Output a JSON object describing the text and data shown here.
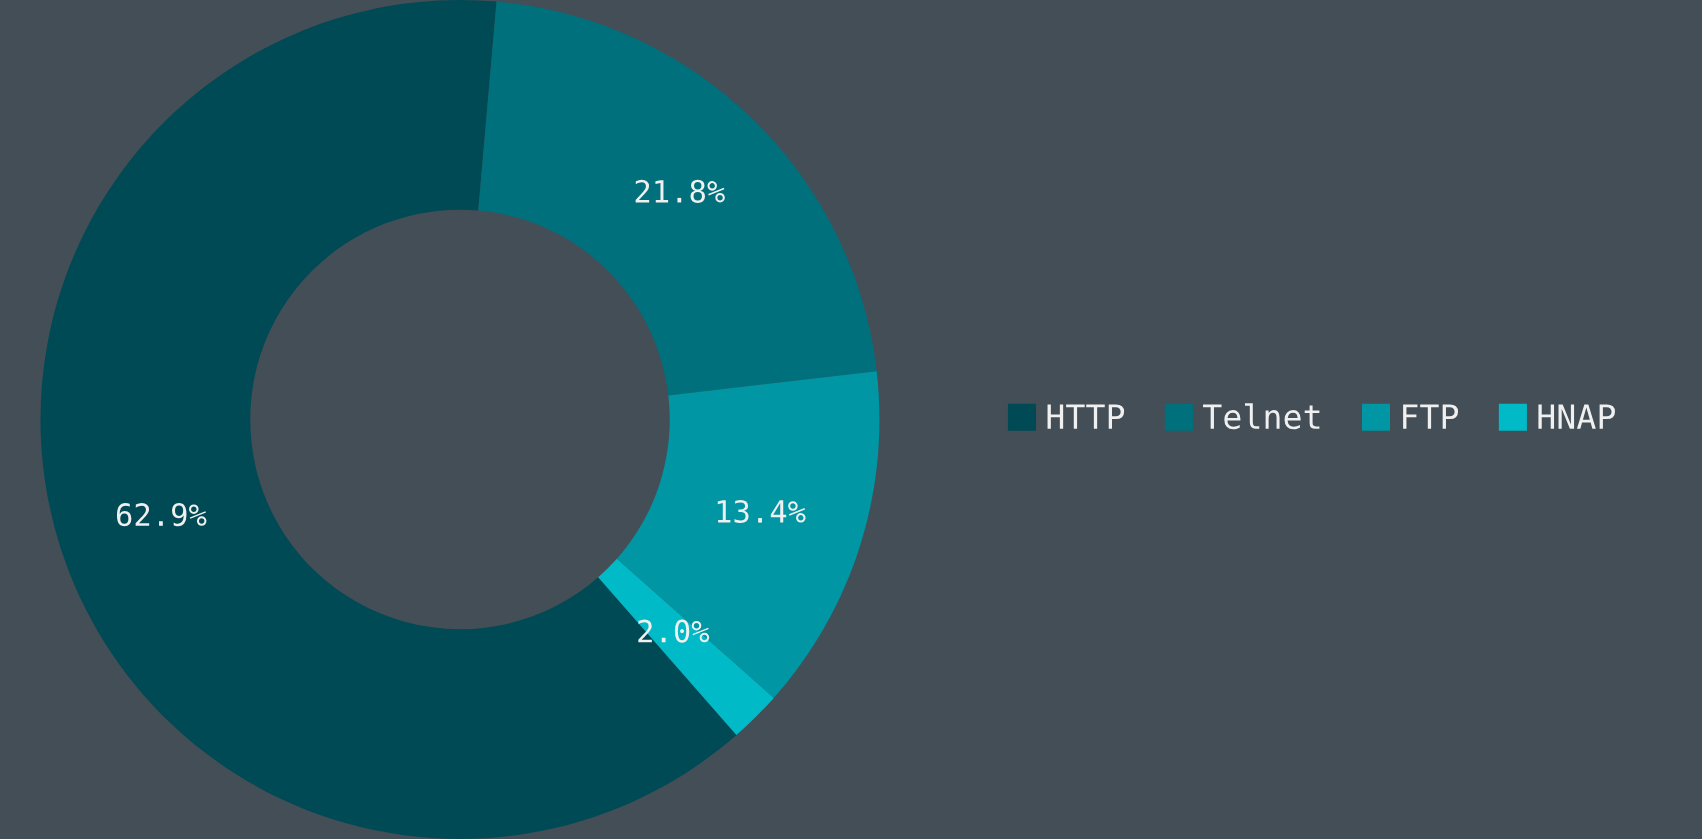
{
  "chart_data": {
    "type": "donut",
    "categories": [
      "HTTP",
      "Telnet",
      "FTP",
      "HNAP"
    ],
    "values": [
      62.9,
      21.8,
      13.4,
      2.0
    ],
    "colors": [
      "#004a55",
      "#00707c",
      "#0096a3",
      "#00bac8"
    ],
    "value_labels": [
      "62.9%",
      "21.8%",
      "13.4%",
      "2.0%"
    ],
    "legend": "right"
  }
}
